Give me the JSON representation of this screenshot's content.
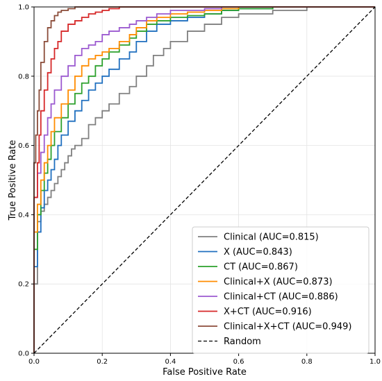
{
  "chart_data": {
    "type": "line",
    "title": "",
    "xlabel": "False Positive Rate",
    "ylabel": "True Positive Rate",
    "xlim": [
      0.0,
      1.0
    ],
    "ylim": [
      0.0,
      1.0
    ],
    "xticks": [
      0.0,
      0.2,
      0.4,
      0.6,
      0.8,
      1.0
    ],
    "yticks": [
      0.0,
      0.2,
      0.4,
      0.6,
      0.8,
      1.0
    ],
    "xtick_labels": [
      "0.0",
      "0.2",
      "0.4",
      "0.6",
      "0.8",
      "1.0"
    ],
    "ytick_labels": [
      "0.0",
      "0.2",
      "0.4",
      "0.6",
      "0.8",
      "1.0"
    ],
    "grid": true,
    "legend_position": "lower-right",
    "series": [
      {
        "name": "Clinical (AUC=0.815)",
        "color": "#7f7f7f",
        "x": [
          0.0,
          0.0,
          0.01,
          0.01,
          0.02,
          0.03,
          0.04,
          0.05,
          0.06,
          0.07,
          0.08,
          0.09,
          0.1,
          0.11,
          0.12,
          0.14,
          0.16,
          0.18,
          0.2,
          0.22,
          0.25,
          0.28,
          0.3,
          0.33,
          0.35,
          0.38,
          0.4,
          0.45,
          0.5,
          0.55,
          0.6,
          0.7,
          0.8,
          0.9,
          1.0
        ],
        "y": [
          0.0,
          0.1,
          0.2,
          0.3,
          0.38,
          0.41,
          0.43,
          0.45,
          0.47,
          0.49,
          0.51,
          0.53,
          0.55,
          0.57,
          0.59,
          0.6,
          0.62,
          0.66,
          0.68,
          0.7,
          0.72,
          0.75,
          0.77,
          0.8,
          0.83,
          0.86,
          0.88,
          0.9,
          0.93,
          0.95,
          0.97,
          0.98,
          0.99,
          1.0,
          1.0
        ]
      },
      {
        "name": "X (AUC=0.843)",
        "color": "#1f6fbf",
        "x": [
          0.0,
          0.0,
          0.01,
          0.02,
          0.03,
          0.04,
          0.05,
          0.06,
          0.07,
          0.08,
          0.1,
          0.12,
          0.14,
          0.16,
          0.18,
          0.2,
          0.22,
          0.25,
          0.28,
          0.3,
          0.33,
          0.36,
          0.4,
          0.45,
          0.5,
          0.55,
          0.6,
          0.7,
          0.8,
          0.9,
          1.0
        ],
        "y": [
          0.0,
          0.15,
          0.25,
          0.35,
          0.42,
          0.47,
          0.5,
          0.53,
          0.56,
          0.6,
          0.63,
          0.67,
          0.7,
          0.73,
          0.76,
          0.78,
          0.8,
          0.82,
          0.85,
          0.87,
          0.9,
          0.93,
          0.95,
          0.96,
          0.97,
          0.98,
          0.99,
          0.995,
          1.0,
          1.0,
          1.0
        ]
      },
      {
        "name": "CT (AUC=0.867)",
        "color": "#2ca02c",
        "x": [
          0.0,
          0.0,
          0.01,
          0.02,
          0.03,
          0.04,
          0.05,
          0.06,
          0.08,
          0.1,
          0.12,
          0.14,
          0.16,
          0.18,
          0.2,
          0.22,
          0.25,
          0.28,
          0.3,
          0.33,
          0.36,
          0.4,
          0.45,
          0.5,
          0.55,
          0.6,
          0.7,
          0.8,
          0.9,
          1.0
        ],
        "y": [
          0.0,
          0.2,
          0.3,
          0.4,
          0.47,
          0.52,
          0.56,
          0.6,
          0.64,
          0.68,
          0.72,
          0.75,
          0.78,
          0.8,
          0.83,
          0.85,
          0.87,
          0.89,
          0.91,
          0.93,
          0.95,
          0.96,
          0.97,
          0.975,
          0.98,
          0.99,
          0.995,
          1.0,
          1.0,
          1.0
        ]
      },
      {
        "name": "Clinical+X (AUC=0.873)",
        "color": "#ff8c00",
        "x": [
          0.0,
          0.0,
          0.01,
          0.02,
          0.03,
          0.04,
          0.05,
          0.06,
          0.08,
          0.1,
          0.12,
          0.14,
          0.16,
          0.18,
          0.2,
          0.22,
          0.25,
          0.28,
          0.3,
          0.33,
          0.36,
          0.4,
          0.45,
          0.5,
          0.55,
          0.6,
          0.7,
          0.8,
          0.9,
          1.0
        ],
        "y": [
          0.0,
          0.25,
          0.35,
          0.43,
          0.5,
          0.55,
          0.6,
          0.64,
          0.68,
          0.72,
          0.76,
          0.8,
          0.83,
          0.85,
          0.86,
          0.87,
          0.88,
          0.9,
          0.92,
          0.94,
          0.96,
          0.97,
          0.98,
          0.985,
          0.99,
          0.995,
          1.0,
          1.0,
          1.0,
          1.0
        ]
      },
      {
        "name": "Clinical+CT (AUC=0.886)",
        "color": "#9b59d0",
        "x": [
          0.0,
          0.0,
          0.01,
          0.02,
          0.03,
          0.04,
          0.05,
          0.06,
          0.08,
          0.1,
          0.12,
          0.14,
          0.16,
          0.18,
          0.2,
          0.22,
          0.25,
          0.28,
          0.3,
          0.33,
          0.36,
          0.4,
          0.45,
          0.5,
          0.55,
          0.6,
          0.7,
          0.8,
          0.9,
          1.0
        ],
        "y": [
          0.0,
          0.35,
          0.45,
          0.52,
          0.58,
          0.63,
          0.68,
          0.72,
          0.76,
          0.8,
          0.83,
          0.86,
          0.88,
          0.89,
          0.9,
          0.92,
          0.93,
          0.94,
          0.95,
          0.96,
          0.97,
          0.98,
          0.99,
          0.99,
          0.995,
          1.0,
          1.0,
          1.0,
          1.0,
          1.0
        ]
      },
      {
        "name": "X+CT (AUC=0.916)",
        "color": "#d62728",
        "x": [
          0.0,
          0.0,
          0.01,
          0.015,
          0.02,
          0.03,
          0.04,
          0.05,
          0.06,
          0.07,
          0.08,
          0.1,
          0.12,
          0.14,
          0.16,
          0.18,
          0.2,
          0.22,
          0.25,
          0.28,
          0.3,
          0.35,
          0.4,
          0.5,
          0.6,
          0.7,
          0.8,
          0.9,
          1.0
        ],
        "y": [
          0.0,
          0.3,
          0.45,
          0.55,
          0.63,
          0.7,
          0.76,
          0.81,
          0.85,
          0.88,
          0.9,
          0.93,
          0.95,
          0.96,
          0.97,
          0.98,
          0.985,
          0.99,
          0.995,
          1.0,
          1.0,
          1.0,
          1.0,
          1.0,
          1.0,
          1.0,
          1.0,
          1.0,
          1.0
        ]
      },
      {
        "name": "Clinical+X+CT (AUC=0.949)",
        "color": "#8b4c39",
        "x": [
          0.0,
          0.0,
          0.005,
          0.01,
          0.015,
          0.02,
          0.03,
          0.04,
          0.05,
          0.06,
          0.07,
          0.08,
          0.1,
          0.12,
          0.14,
          0.16,
          0.2,
          0.25,
          0.3,
          0.4,
          0.5,
          0.6,
          0.7,
          0.8,
          0.9,
          1.0
        ],
        "y": [
          0.0,
          0.45,
          0.55,
          0.63,
          0.7,
          0.76,
          0.84,
          0.9,
          0.94,
          0.96,
          0.975,
          0.985,
          0.99,
          0.995,
          1.0,
          1.0,
          1.0,
          1.0,
          1.0,
          1.0,
          1.0,
          1.0,
          1.0,
          1.0,
          1.0,
          1.0
        ]
      },
      {
        "name": "Random",
        "color": "#000000",
        "dashed": true,
        "x": [
          0.0,
          1.0
        ],
        "y": [
          0.0,
          1.0
        ]
      }
    ]
  }
}
